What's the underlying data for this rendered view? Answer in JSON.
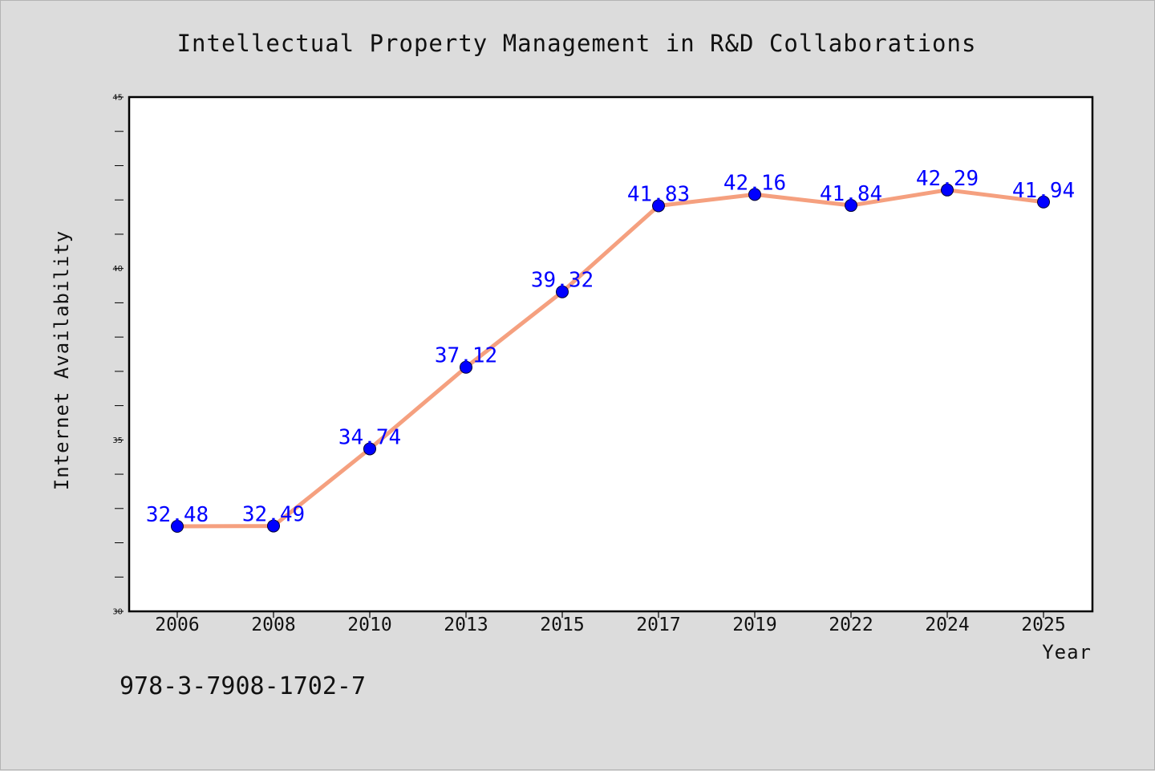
{
  "chart_data": {
    "type": "line",
    "title": "Intellectual Property Management in R&D Collaborations",
    "xlabel": "Year",
    "ylabel": "Internet Availability",
    "categories": [
      "2006",
      "2008",
      "2010",
      "2013",
      "2015",
      "2017",
      "2019",
      "2022",
      "2024",
      "2025"
    ],
    "series": [
      {
        "values": [
          32.48,
          32.49,
          34.74,
          37.12,
          39.32,
          41.83,
          42.16,
          41.84,
          42.29,
          41.94
        ],
        "data_labels": [
          "32.48",
          "32.49",
          "34.74",
          "37.12",
          "39.32",
          "41.83",
          "42.16",
          "41.84",
          "42.29",
          "41.94"
        ],
        "line_color": "#f5a07f",
        "marker_color": "#0000ff"
      }
    ],
    "ylim": [
      30,
      45
    ],
    "y_ticks": [
      "30",
      "35",
      "40",
      "45"
    ],
    "y_minor_step": 1,
    "grid": false,
    "legend": "none"
  },
  "annotation": {
    "isbn": "978-3-7908-1702-7"
  }
}
